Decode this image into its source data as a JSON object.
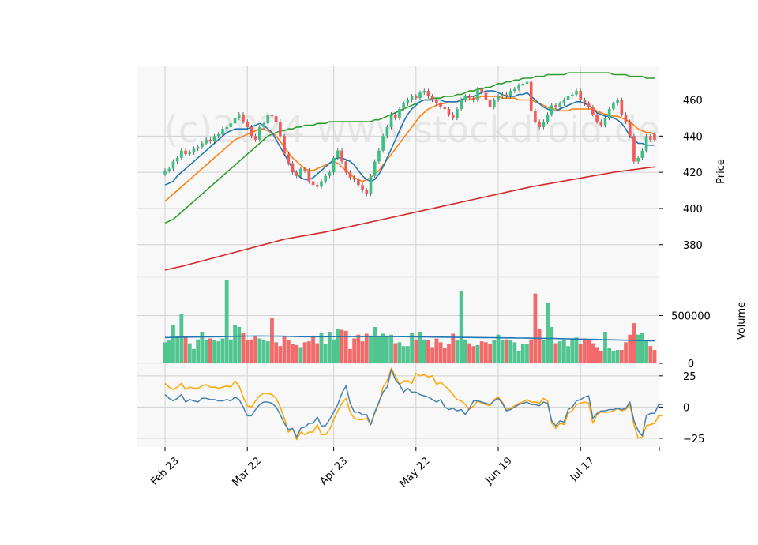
{
  "watermark": "(c)2024 www.stockdroid.de",
  "colors": {
    "up": "#3dbf84",
    "down": "#f25a5a",
    "ma_short": "#1f77b4",
    "ma_mid": "#ff7f0e",
    "ma_long": "#2ca02c",
    "ma_200": "#d62728",
    "vol_ma": "#1f77b4",
    "osc_a": "#ffa500",
    "osc_b": "#4682b4",
    "panel_bg": "#f8f8f8",
    "grid": "#d0d0d0"
  },
  "chart_data": [
    {
      "type": "candlestick",
      "panel": "price",
      "ylabel": "Price",
      "ylim": [
        362,
        479
      ],
      "yticks": [
        380,
        400,
        420,
        440,
        460
      ],
      "x_ticks": [
        {
          "index": 0,
          "label": "Feb 23"
        },
        {
          "index": 20,
          "label": "Mar 22"
        },
        {
          "index": 41,
          "label": "Apr 23"
        },
        {
          "index": 61,
          "label": "May 22"
        },
        {
          "index": 81,
          "label": "Jun 19"
        },
        {
          "index": 101,
          "label": "Jul 17"
        }
      ],
      "n_sessions": 120,
      "close": [
        421,
        422,
        426,
        428,
        432,
        430,
        431,
        433,
        434,
        436,
        438,
        437,
        440,
        441,
        444,
        445,
        447,
        450,
        452,
        448,
        445,
        440,
        438,
        445,
        447,
        452,
        451,
        448,
        440,
        430,
        425,
        420,
        418,
        422,
        421,
        415,
        413,
        412,
        415,
        418,
        420,
        428,
        432,
        426,
        420,
        417,
        416,
        413,
        410,
        408,
        418,
        426,
        432,
        440,
        445,
        452,
        450,
        455,
        458,
        460,
        462,
        461,
        464,
        465,
        462,
        460,
        458,
        456,
        455,
        452,
        450,
        455,
        460,
        462,
        461,
        460,
        466,
        464,
        460,
        456,
        460,
        462,
        463,
        462,
        465,
        466,
        468,
        469,
        470,
        454,
        448,
        445,
        448,
        452,
        457,
        456,
        458,
        460,
        462,
        463,
        465,
        460,
        458,
        456,
        452,
        448,
        446,
        450,
        455,
        458,
        460,
        452,
        448,
        440,
        426,
        428,
        432,
        440,
        438,
        438
      ],
      "open": [
        419,
        421,
        422,
        426,
        428,
        432,
        430,
        431,
        433,
        434,
        436,
        438,
        437,
        440,
        441,
        444,
        445,
        447,
        450,
        452,
        448,
        445,
        440,
        438,
        445,
        447,
        452,
        451,
        448,
        440,
        430,
        425,
        420,
        418,
        422,
        421,
        415,
        413,
        412,
        415,
        418,
        420,
        428,
        432,
        426,
        420,
        417,
        416,
        413,
        410,
        408,
        418,
        426,
        432,
        440,
        445,
        452,
        450,
        455,
        458,
        460,
        462,
        461,
        464,
        465,
        462,
        460,
        458,
        456,
        455,
        452,
        450,
        455,
        460,
        462,
        461,
        460,
        466,
        464,
        460,
        456,
        460,
        462,
        463,
        462,
        465,
        466,
        468,
        469,
        470,
        454,
        448,
        445,
        448,
        452,
        457,
        456,
        458,
        460,
        462,
        463,
        465,
        460,
        458,
        456,
        452,
        448,
        446,
        450,
        455,
        458,
        460,
        452,
        448,
        440,
        426,
        428,
        432,
        440,
        441
      ],
      "ma_short": [
        413,
        414,
        415,
        418,
        420,
        422,
        424,
        426,
        428,
        430,
        432,
        434,
        436,
        438,
        440,
        442,
        443,
        444,
        444,
        444,
        444,
        445,
        446,
        447,
        446,
        444,
        442,
        438,
        434,
        430,
        426,
        422,
        419,
        417,
        416,
        416,
        417,
        419,
        421,
        423,
        425,
        427,
        428,
        428,
        427,
        426,
        424,
        421,
        418,
        416,
        415,
        416,
        419,
        423,
        428,
        433,
        438,
        443,
        448,
        452,
        455,
        457,
        459,
        460,
        460,
        460,
        460,
        460,
        459,
        459,
        459,
        459,
        460,
        461,
        462,
        462,
        463,
        464,
        465,
        465,
        465,
        464,
        463,
        462,
        462,
        462,
        463,
        463,
        464,
        462,
        460,
        458,
        456,
        455,
        454,
        454,
        455,
        456,
        457,
        458,
        459,
        459,
        458,
        457,
        455,
        453,
        452,
        451,
        451,
        450,
        449,
        447,
        444,
        440,
        438,
        436,
        436,
        435,
        435,
        435
      ],
      "ma_mid": [
        404,
        406,
        408,
        410,
        412,
        414,
        416,
        418,
        420,
        422,
        424,
        426,
        428,
        430,
        432,
        434,
        436,
        438,
        439,
        440,
        441,
        442,
        443,
        444,
        444,
        443,
        442,
        440,
        437,
        434,
        431,
        428,
        426,
        424,
        422,
        421,
        421,
        422,
        423,
        424,
        425,
        426,
        425,
        423,
        421,
        419,
        417,
        416,
        415,
        416,
        417,
        419,
        421,
        424,
        427,
        430,
        433,
        436,
        439,
        442,
        445,
        448,
        451,
        453,
        455,
        456,
        457,
        458,
        458,
        459,
        459,
        459,
        460,
        460,
        460,
        461,
        461,
        462,
        462,
        462,
        462,
        462,
        461,
        461,
        461,
        461,
        460,
        460,
        460,
        460,
        459,
        458,
        457,
        456,
        455,
        455,
        454,
        454,
        454,
        455,
        455,
        455,
        455,
        455,
        455,
        454,
        453,
        452,
        452,
        451,
        451,
        450,
        449,
        448,
        446,
        444,
        443,
        442,
        442,
        441
      ],
      "ma_long": [
        392,
        393,
        394,
        396,
        398,
        400,
        402,
        404,
        406,
        408,
        410,
        412,
        414,
        416,
        418,
        420,
        422,
        424,
        426,
        428,
        430,
        432,
        434,
        436,
        438,
        440,
        441,
        442,
        443,
        443,
        444,
        444,
        445,
        445,
        446,
        446,
        446,
        447,
        447,
        447,
        448,
        448,
        448,
        448,
        448,
        448,
        448,
        448,
        448,
        448,
        448,
        449,
        449,
        450,
        451,
        452,
        453,
        454,
        455,
        456,
        457,
        458,
        459,
        460,
        460,
        461,
        461,
        461,
        462,
        462,
        462,
        463,
        463,
        464,
        465,
        465,
        466,
        466,
        467,
        467,
        468,
        469,
        469,
        470,
        470,
        471,
        471,
        472,
        472,
        472,
        473,
        473,
        473,
        474,
        474,
        474,
        474,
        474,
        475,
        475,
        475,
        475,
        475,
        475,
        475,
        475,
        475,
        475,
        475,
        474,
        474,
        474,
        474,
        473,
        473,
        473,
        473,
        472,
        472,
        472
      ],
      "ma_200": [
        366,
        366.5,
        367,
        367.5,
        368,
        368.6,
        369.2,
        369.8,
        370.4,
        371,
        371.6,
        372.2,
        372.8,
        373.4,
        374,
        374.6,
        375.2,
        375.8,
        376.4,
        377,
        377.6,
        378.2,
        378.8,
        379.4,
        380,
        380.6,
        381.2,
        381.8,
        382.4,
        383,
        383.4,
        383.8,
        384.2,
        384.6,
        385,
        385.4,
        385.8,
        386.2,
        386.6,
        387,
        387.5,
        388,
        388.5,
        389,
        389.5,
        390,
        390.5,
        391,
        391.5,
        392,
        392.5,
        393,
        393.5,
        394,
        394.5,
        395,
        395.5,
        396,
        396.5,
        397,
        397.5,
        398,
        398.5,
        399,
        399.5,
        400,
        400.5,
        401,
        401.5,
        402,
        402.5,
        403,
        403.5,
        404,
        404.5,
        405,
        405.5,
        406,
        406.5,
        407,
        407.5,
        408,
        408.5,
        409,
        409.5,
        410,
        410.5,
        411,
        411.5,
        412,
        412.4,
        412.8,
        413.2,
        413.6,
        414,
        414.4,
        414.8,
        415.2,
        415.6,
        416,
        416.4,
        416.8,
        417.2,
        417.6,
        418,
        418.4,
        418.8,
        419.2,
        419.6,
        420,
        420.3,
        420.6,
        420.9,
        421.2,
        421.5,
        421.8,
        422.1,
        422.4,
        422.7,
        423
      ]
    },
    {
      "type": "bar",
      "panel": "volume",
      "ylabel": "Volume",
      "ylim": [
        0,
        900000
      ],
      "yticks": [
        0,
        500000
      ],
      "ytick_labels": [
        "0",
        "500000"
      ],
      "values": [
        220000,
        240000,
        400000,
        280000,
        520000,
        270000,
        210000,
        150000,
        250000,
        330000,
        240000,
        260000,
        240000,
        230000,
        260000,
        870000,
        250000,
        400000,
        380000,
        320000,
        240000,
        250000,
        280000,
        260000,
        240000,
        230000,
        470000,
        220000,
        180000,
        280000,
        240000,
        200000,
        190000,
        170000,
        220000,
        230000,
        290000,
        210000,
        320000,
        200000,
        330000,
        250000,
        360000,
        350000,
        340000,
        150000,
        260000,
        300000,
        230000,
        310000,
        290000,
        380000,
        290000,
        310000,
        290000,
        300000,
        210000,
        220000,
        180000,
        180000,
        320000,
        250000,
        330000,
        250000,
        240000,
        170000,
        260000,
        220000,
        160000,
        200000,
        310000,
        240000,
        760000,
        250000,
        210000,
        180000,
        190000,
        230000,
        220000,
        200000,
        240000,
        300000,
        240000,
        250000,
        240000,
        220000,
        130000,
        200000,
        200000,
        250000,
        730000,
        360000,
        240000,
        630000,
        380000,
        210000,
        230000,
        240000,
        180000,
        260000,
        270000,
        200000,
        260000,
        240000,
        210000,
        170000,
        130000,
        330000,
        160000,
        130000,
        140000,
        140000,
        220000,
        300000,
        420000,
        300000,
        320000,
        240000,
        180000,
        140000
      ],
      "vol_ma": [
        270000,
        270000,
        272000,
        272000,
        274000,
        274000,
        275000,
        275000,
        276000,
        276000,
        277000,
        277000,
        278000,
        278000,
        279000,
        280000,
        281000,
        282000,
        283000,
        284000,
        285000,
        285000,
        286000,
        286000,
        286000,
        285000,
        285000,
        284000,
        284000,
        283000,
        282000,
        281000,
        280000,
        279000,
        278000,
        278000,
        278000,
        278000,
        278000,
        278000,
        279000,
        279000,
        280000,
        280000,
        280000,
        280000,
        280000,
        280000,
        280000,
        280000,
        280000,
        280000,
        281000,
        281000,
        281000,
        281000,
        280000,
        280000,
        279000,
        278000,
        278000,
        277000,
        277000,
        276000,
        276000,
        275000,
        275000,
        274000,
        274000,
        273000,
        273000,
        272000,
        272000,
        271000,
        271000,
        270000,
        270000,
        269000,
        269000,
        268000,
        268000,
        267000,
        267000,
        266000,
        266000,
        265000,
        264000,
        264000,
        263000,
        263000,
        262000,
        262000,
        261000,
        261000,
        260000,
        259000,
        258000,
        257000,
        256000,
        255000,
        254000,
        253000,
        252000,
        251000,
        250000,
        249000,
        248000,
        247000,
        246000,
        245000,
        244000,
        243000,
        242000,
        241000,
        240000,
        239000,
        238000,
        237000,
        236000,
        235000
      ]
    },
    {
      "type": "line",
      "panel": "oscillator",
      "ylim": [
        -32,
        35
      ],
      "yticks": [
        -25,
        0,
        25
      ],
      "ytick_labels": [
        "−25",
        "0",
        "25"
      ],
      "series": [
        {
          "key": "osc_a",
          "values": [
            19,
            16,
            14,
            16,
            19,
            14,
            16,
            15,
            15,
            17,
            18,
            16,
            16,
            15,
            16,
            17,
            16,
            21,
            17,
            8,
            1,
            0,
            5,
            9,
            11,
            11,
            10,
            7,
            0,
            -9,
            -20,
            -17,
            -26,
            -20,
            -22,
            -20,
            -20,
            -14,
            -22,
            -22,
            -18,
            -10,
            -3,
            3,
            7,
            -4,
            -9,
            -10,
            -10,
            -9,
            -14,
            -5,
            3,
            16,
            21,
            31,
            25,
            18,
            21,
            21,
            19,
            27,
            25,
            26,
            24,
            25,
            18,
            20,
            17,
            14,
            10,
            6,
            5,
            2,
            -2,
            1,
            5,
            3,
            2,
            1,
            6,
            8,
            4,
            -2,
            -1,
            1,
            3,
            4,
            6,
            4,
            4,
            3,
            7,
            5,
            -13,
            -17,
            -13,
            -14,
            -5,
            -3,
            2,
            3,
            4,
            3,
            -13,
            -6,
            -4,
            -4,
            -4,
            -3,
            -1,
            -3,
            -2,
            2,
            -14,
            -25,
            -24,
            -15,
            -14,
            -13,
            -7,
            -7
          ]
        },
        {
          "key": "osc_b",
          "values": [
            10,
            7,
            5,
            7,
            10,
            4,
            6,
            5,
            4,
            7,
            7,
            6,
            6,
            5,
            5,
            6,
            5,
            8,
            6,
            0,
            -7,
            -7,
            -2,
            2,
            4,
            4,
            3,
            0,
            -6,
            -13,
            -18,
            -17,
            -24,
            -17,
            -16,
            -13,
            -13,
            -8,
            -15,
            -15,
            -10,
            -4,
            2,
            11,
            17,
            3,
            -4,
            -4,
            -6,
            -6,
            -14,
            -4,
            4,
            12,
            16,
            30,
            22,
            18,
            12,
            15,
            12,
            12,
            10,
            9,
            8,
            6,
            4,
            6,
            0,
            -2,
            -1,
            -3,
            -2,
            -6,
            -1,
            5,
            5,
            4,
            3,
            2,
            5,
            7,
            3,
            -3,
            -2,
            0,
            2,
            3,
            4,
            2,
            2,
            1,
            4,
            3,
            -11,
            -15,
            -11,
            -12,
            -2,
            0,
            5,
            6,
            8,
            9,
            -9,
            -5,
            -3,
            -3,
            -2,
            -2,
            -1,
            -2,
            -1,
            4,
            -11,
            -19,
            -23,
            -7,
            -5,
            -5,
            2,
            2
          ]
        }
      ]
    }
  ]
}
